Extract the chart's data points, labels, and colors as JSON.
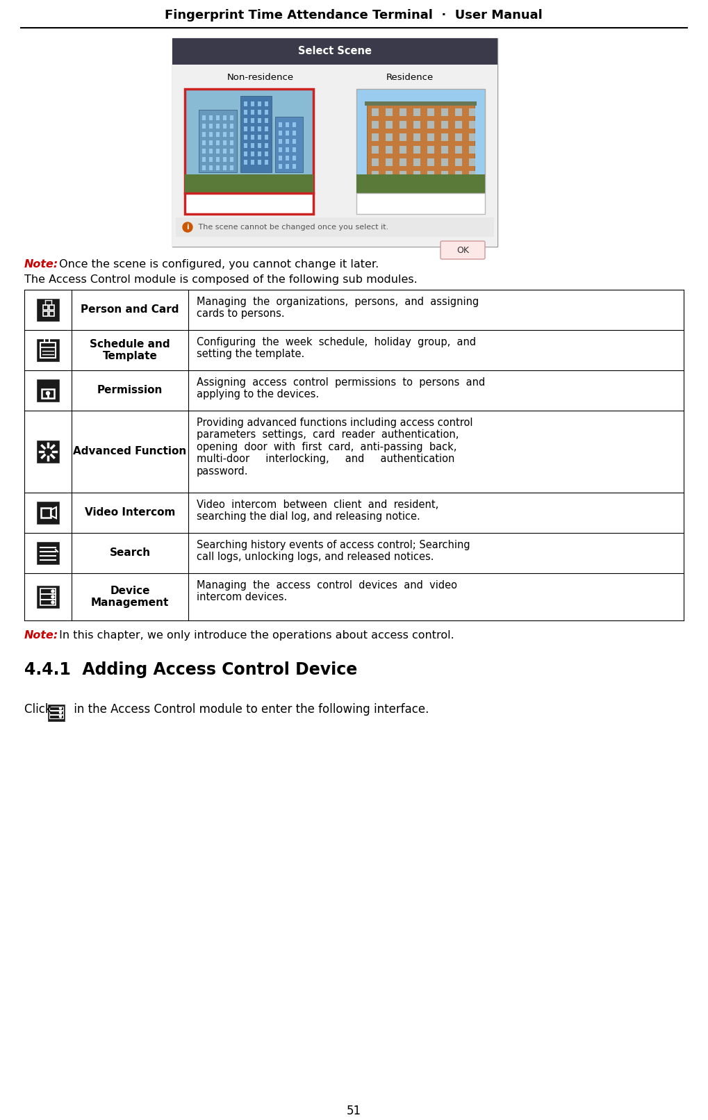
{
  "header_title": "Fingerprint Time Attendance Terminal",
  "header_separator": "·",
  "header_subtitle": "User Manual",
  "note1_bold": "Note:",
  "note1_text": " Once the scene is configured, you cannot change it later.",
  "note2_text": "The Access Control module is composed of the following sub modules.",
  "table_rows": [
    {
      "icon_label": "person_card",
      "name": "Person and Card",
      "description": "Managing  the  organizations,  persons,  and  assigning\ncards to persons."
    },
    {
      "icon_label": "schedule_template",
      "name": "Schedule and\nTemplate",
      "description": "Configuring  the  week  schedule,  holiday  group,  and\nsetting the template."
    },
    {
      "icon_label": "permission",
      "name": "Permission",
      "description": "Assigning  access  control  permissions  to  persons  and\napplying to the devices."
    },
    {
      "icon_label": "advanced_function",
      "name": "Advanced Function",
      "description": "Providing advanced functions including access control\nparameters  settings,  card  reader  authentication,\nopening  door  with  first  card,  anti-passing  back,\nmulti-door     interlocking,     and     authentication\npassword."
    },
    {
      "icon_label": "video_intercom",
      "name": "Video Intercom",
      "description": "Video  intercom  between  client  and  resident,\nsearching the dial log, and releasing notice."
    },
    {
      "icon_label": "search",
      "name": "Search",
      "description": "Searching history events of access control; Searching\ncall logs, unlocking logs, and released notices."
    },
    {
      "icon_label": "device_management",
      "name": "Device\nManagement",
      "description": "Managing  the  access  control  devices  and  video\nintercom devices."
    }
  ],
  "note3_bold": "Note:",
  "note3_text": " In this chapter, we only introduce the operations about access control.",
  "section_title": "4.4.1  Adding Access Control Device",
  "click_text_before": "Click ",
  "click_text_after": " in the Access Control module to enter the following interface.",
  "page_number": "51",
  "bg_color": "#ffffff",
  "text_color": "#000000",
  "note_color": "#cc0000",
  "header_color": "#000000",
  "table_border_color": "#000000"
}
